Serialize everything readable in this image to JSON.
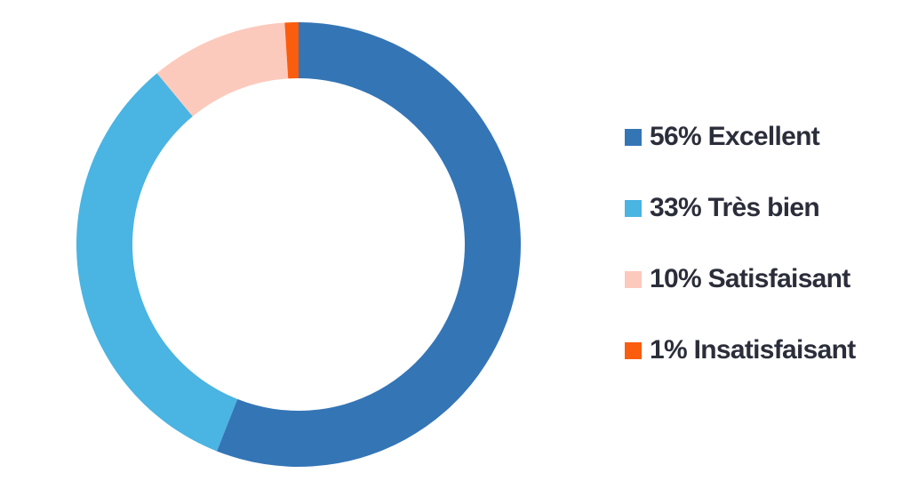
{
  "chart_data": {
    "type": "pie",
    "categories": [
      "Excellent",
      "Très bien",
      "Satisfaisant",
      "Insatisfaisant"
    ],
    "values": [
      56,
      33,
      10,
      1
    ],
    "colors": [
      "#3475b6",
      "#4ab4e2",
      "#fccabc",
      "#fb5d0f"
    ],
    "legend_position": "right",
    "legend": [
      {
        "label": "56% Excellent",
        "color": "#3475b6"
      },
      {
        "label": "33% Très bien",
        "color": "#4ab4e2"
      },
      {
        "label": "10% Satisfaisant",
        "color": "#fccabc"
      },
      {
        "label": "1% Insatisfaisant",
        "color": "#fb5d0f"
      }
    ]
  }
}
